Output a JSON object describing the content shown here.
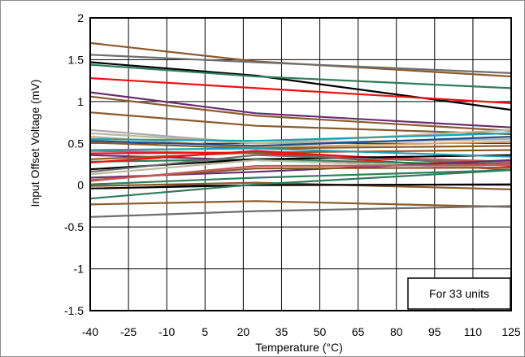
{
  "chart_data": {
    "type": "line",
    "xlabel": "Temperature (°C)",
    "ylabel": "Input Offset Voltage (mV)",
    "xlim": [
      -40,
      125
    ],
    "ylim": [
      -1.5,
      2
    ],
    "x_ticks": [
      "-40",
      "-25",
      "-10",
      "5",
      "20",
      "35",
      "50",
      "65",
      "80",
      "95",
      "110",
      "125"
    ],
    "y_ticks": [
      "-1.5",
      "-1",
      "-0.5",
      "0",
      "0.5",
      "1",
      "1.5",
      "2"
    ],
    "grid": true,
    "annotation": "For 33 units",
    "x": [
      -40,
      25,
      125
    ],
    "series": [
      {
        "color": "#8B5A2B",
        "values": [
          1.7,
          1.48,
          1.3
        ]
      },
      {
        "color": "#6E6E6E",
        "values": [
          1.56,
          1.47,
          1.34
        ]
      },
      {
        "color": "#000000",
        "values": [
          1.47,
          1.31,
          0.9
        ]
      },
      {
        "color": "#2E7D5B",
        "values": [
          1.44,
          1.3,
          1.16
        ]
      },
      {
        "color": "#EE1111",
        "values": [
          1.28,
          1.16,
          0.98
        ]
      },
      {
        "color": "#6A2C70",
        "values": [
          1.11,
          0.86,
          0.69
        ]
      },
      {
        "color": "#8B5A2B",
        "values": [
          1.06,
          0.83,
          0.65
        ]
      },
      {
        "color": "#8B5A2B",
        "values": [
          0.87,
          0.71,
          0.61
        ]
      },
      {
        "color": "#AAAAAA",
        "values": [
          0.66,
          0.5,
          0.55
        ]
      },
      {
        "color": "#B8B8A0",
        "values": [
          0.62,
          0.5,
          0.66
        ]
      },
      {
        "color": "#D2A56E",
        "values": [
          0.58,
          0.45,
          0.52
        ]
      },
      {
        "color": "#20A0B0",
        "values": [
          0.55,
          0.53,
          0.62
        ]
      },
      {
        "color": "#1F4E8C",
        "values": [
          0.53,
          0.47,
          0.58
        ]
      },
      {
        "color": "#8B5A2B",
        "values": [
          0.51,
          0.44,
          0.47
        ]
      },
      {
        "color": "#C65A5A",
        "values": [
          0.41,
          0.38,
          0.28
        ]
      },
      {
        "color": "#EE1111",
        "values": [
          0.38,
          0.39,
          0.18
        ]
      },
      {
        "color": "#6A2C70",
        "values": [
          0.36,
          0.3,
          0.2
        ]
      },
      {
        "color": "#8B5A2B",
        "values": [
          0.31,
          0.39,
          0.42
        ]
      },
      {
        "color": "#2E7D5B",
        "values": [
          0.28,
          0.31,
          0.24
        ]
      },
      {
        "color": "#EE1111",
        "values": [
          0.27,
          0.41,
          0.23
        ]
      },
      {
        "color": "#000000",
        "values": [
          0.19,
          0.31,
          0.36
        ]
      },
      {
        "color": "#6E6E6E",
        "values": [
          0.16,
          0.36,
          0.26
        ]
      },
      {
        "color": "#B8B8A0",
        "values": [
          0.13,
          0.3,
          0.2
        ]
      },
      {
        "color": "#6A2C70",
        "values": [
          0.09,
          0.16,
          0.3
        ]
      },
      {
        "color": "#8B5A2B",
        "values": [
          0.06,
          0.2,
          0.21
        ]
      },
      {
        "color": "#C65A5A",
        "values": [
          0.05,
          0.23,
          0.24
        ]
      },
      {
        "color": "#2E7D5B",
        "values": [
          0.01,
          0.09,
          0.18
        ]
      },
      {
        "color": "#8B5A2B",
        "values": [
          -0.01,
          0.03,
          -0.05
        ]
      },
      {
        "color": "#000000",
        "values": [
          -0.04,
          0.0,
          0.01
        ]
      },
      {
        "color": "#2E7D5B",
        "values": [
          -0.16,
          0.01,
          0.18
        ]
      },
      {
        "color": "#8B5A2B",
        "values": [
          -0.23,
          -0.19,
          -0.26
        ]
      },
      {
        "color": "#6E6E6E",
        "values": [
          -0.38,
          -0.31,
          -0.25
        ]
      },
      {
        "color": "#20A0B0",
        "values": [
          0.42,
          0.44,
          0.34
        ]
      }
    ]
  }
}
